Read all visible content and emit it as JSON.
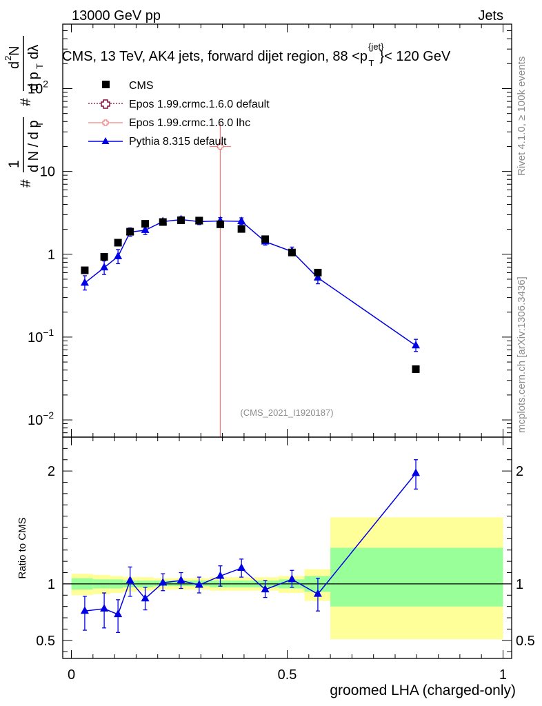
{
  "header": {
    "energy": "13000 GeV pp",
    "process": "Jets",
    "title_main": "CMS, 13 TeV, AK4 jets, forward dijet region, 88 <p",
    "title_sup": "{jet}",
    "title_sub": "T",
    "title_end": "}< 120 GeV",
    "rivet_label": "Rivet 4.1.0, ≥ 100k events",
    "mcplots_label": "mcplots.cern.ch [arXiv:1306.3436]",
    "analysis_id": "(CMS_2021_I1920187)"
  },
  "axes": {
    "xlabel": "groomed LHA (charged-only)",
    "ratio_ylabel": "Ratio to CMS",
    "main_ylabel_parts": [
      "#",
      "1",
      "d N / d p",
      "T",
      "#",
      "d",
      "2",
      "N",
      "d p",
      "T",
      "dλ"
    ]
  },
  "chart_data": [
    {
      "type": "scatter",
      "panel": "main",
      "yscale": "log",
      "xlim": [
        -0.02,
        1.02
      ],
      "ylim": [
        0.0062,
        600
      ],
      "x_ticks": [
        {
          "v": 0,
          "label": "0"
        },
        {
          "v": 0.5,
          "label": "0.5"
        },
        {
          "v": 1,
          "label": "1"
        }
      ],
      "y_ticks": [
        {
          "v": 0.01,
          "base": "10",
          "exp": "−2"
        },
        {
          "v": 0.1,
          "base": "10",
          "exp": "−1"
        },
        {
          "v": 1,
          "base": "1",
          "exp": ""
        },
        {
          "v": 10,
          "base": "10",
          "exp": ""
        },
        {
          "v": 100,
          "base": "10",
          "exp": "2"
        }
      ],
      "series": [
        {
          "name": "CMS",
          "marker": "square",
          "color": "#000000",
          "x": [
            0.031,
            0.076,
            0.108,
            0.136,
            0.171,
            0.212,
            0.254,
            0.296,
            0.345,
            0.394,
            0.449,
            0.511,
            0.571,
            0.798
          ],
          "y": [
            0.64,
            0.93,
            1.38,
            1.87,
            2.33,
            2.45,
            2.57,
            2.55,
            2.3,
            2.02,
            1.52,
            1.05,
            0.6,
            0.041
          ]
        },
        {
          "name": "Epos 1.99.crmc.1.6.0 default",
          "marker": "open-cross",
          "color": "#800033",
          "line": "dotted",
          "x": [],
          "y": []
        },
        {
          "name": "Epos 1.99.crmc.1.6.0 lhc",
          "marker": "open-cross",
          "color": "#f08080",
          "x": [
            0.345
          ],
          "y": [
            20
          ],
          "yerr_lo": [
            19.99
          ],
          "yerr_hi": [
            18
          ],
          "xerr": [
            0.025
          ]
        },
        {
          "name": "Pythia 8.315 default",
          "marker": "triangle",
          "color": "#0000e6",
          "line": "solid",
          "x": [
            0.031,
            0.076,
            0.108,
            0.136,
            0.171,
            0.212,
            0.254,
            0.296,
            0.345,
            0.394,
            0.449,
            0.511,
            0.571,
            0.798
          ],
          "y": [
            0.45,
            0.69,
            0.94,
            1.85,
            1.95,
            2.48,
            2.62,
            2.48,
            2.52,
            2.5,
            1.42,
            1.08,
            0.52,
            0.079
          ],
          "yerr_lo": [
            0.08,
            0.12,
            0.17,
            0.2,
            0.22,
            0.18,
            0.2,
            0.2,
            0.22,
            0.22,
            0.13,
            0.12,
            0.08,
            0.012
          ],
          "yerr_hi": [
            0.1,
            0.14,
            0.2,
            0.23,
            0.25,
            0.2,
            0.22,
            0.22,
            0.25,
            0.25,
            0.15,
            0.14,
            0.09,
            0.015
          ]
        }
      ]
    },
    {
      "type": "line",
      "panel": "ratio",
      "yscale": "linear",
      "xlim": [
        -0.02,
        1.02
      ],
      "ylim": [
        0.34,
        2.3
      ],
      "y_ticks": [
        {
          "v": 0.5,
          "label": "0.5"
        },
        {
          "v": 1,
          "label": "1"
        },
        {
          "v": 2,
          "label": "2"
        }
      ],
      "bands": {
        "edges": [
          0,
          0.05,
          0.09,
          0.12,
          0.15,
          0.19,
          0.23,
          0.27,
          0.32,
          0.37,
          0.42,
          0.48,
          0.54,
          0.6,
          1.0
        ],
        "yellow_lo": [
          0.9,
          0.91,
          0.92,
          0.93,
          0.94,
          0.95,
          0.95,
          0.95,
          0.94,
          0.94,
          0.94,
          0.92,
          0.85,
          0.51
        ],
        "yellow_hi": [
          1.09,
          1.08,
          1.07,
          1.06,
          1.06,
          1.05,
          1.05,
          1.05,
          1.06,
          1.06,
          1.06,
          1.07,
          1.13,
          1.59
        ],
        "green_lo": [
          0.95,
          0.96,
          0.96,
          0.97,
          0.97,
          0.98,
          0.98,
          0.98,
          0.97,
          0.97,
          0.97,
          0.96,
          0.93,
          0.8
        ],
        "green_hi": [
          1.05,
          1.04,
          1.04,
          1.03,
          1.03,
          1.03,
          1.03,
          1.03,
          1.03,
          1.03,
          1.03,
          1.04,
          1.07,
          1.32
        ]
      },
      "series": [
        {
          "name": "Pythia 8.315 default",
          "marker": "triangle",
          "color": "#0000e6",
          "x": [
            0.031,
            0.076,
            0.108,
            0.136,
            0.171,
            0.212,
            0.254,
            0.296,
            0.345,
            0.394,
            0.449,
            0.511,
            0.571,
            0.798
          ],
          "y": [
            0.76,
            0.78,
            0.73,
            1.03,
            0.87,
            1.01,
            1.03,
            0.99,
            1.07,
            1.14,
            0.95,
            1.04,
            0.91,
            1.98
          ],
          "yerr_lo": [
            0.17,
            0.17,
            0.16,
            0.14,
            0.1,
            0.07,
            0.07,
            0.07,
            0.09,
            0.08,
            0.07,
            0.07,
            0.15,
            0.14
          ],
          "yerr_hi": [
            0.13,
            0.14,
            0.13,
            0.12,
            0.1,
            0.08,
            0.07,
            0.07,
            0.09,
            0.08,
            0.08,
            0.08,
            0.14,
            0.12
          ]
        }
      ]
    }
  ]
}
